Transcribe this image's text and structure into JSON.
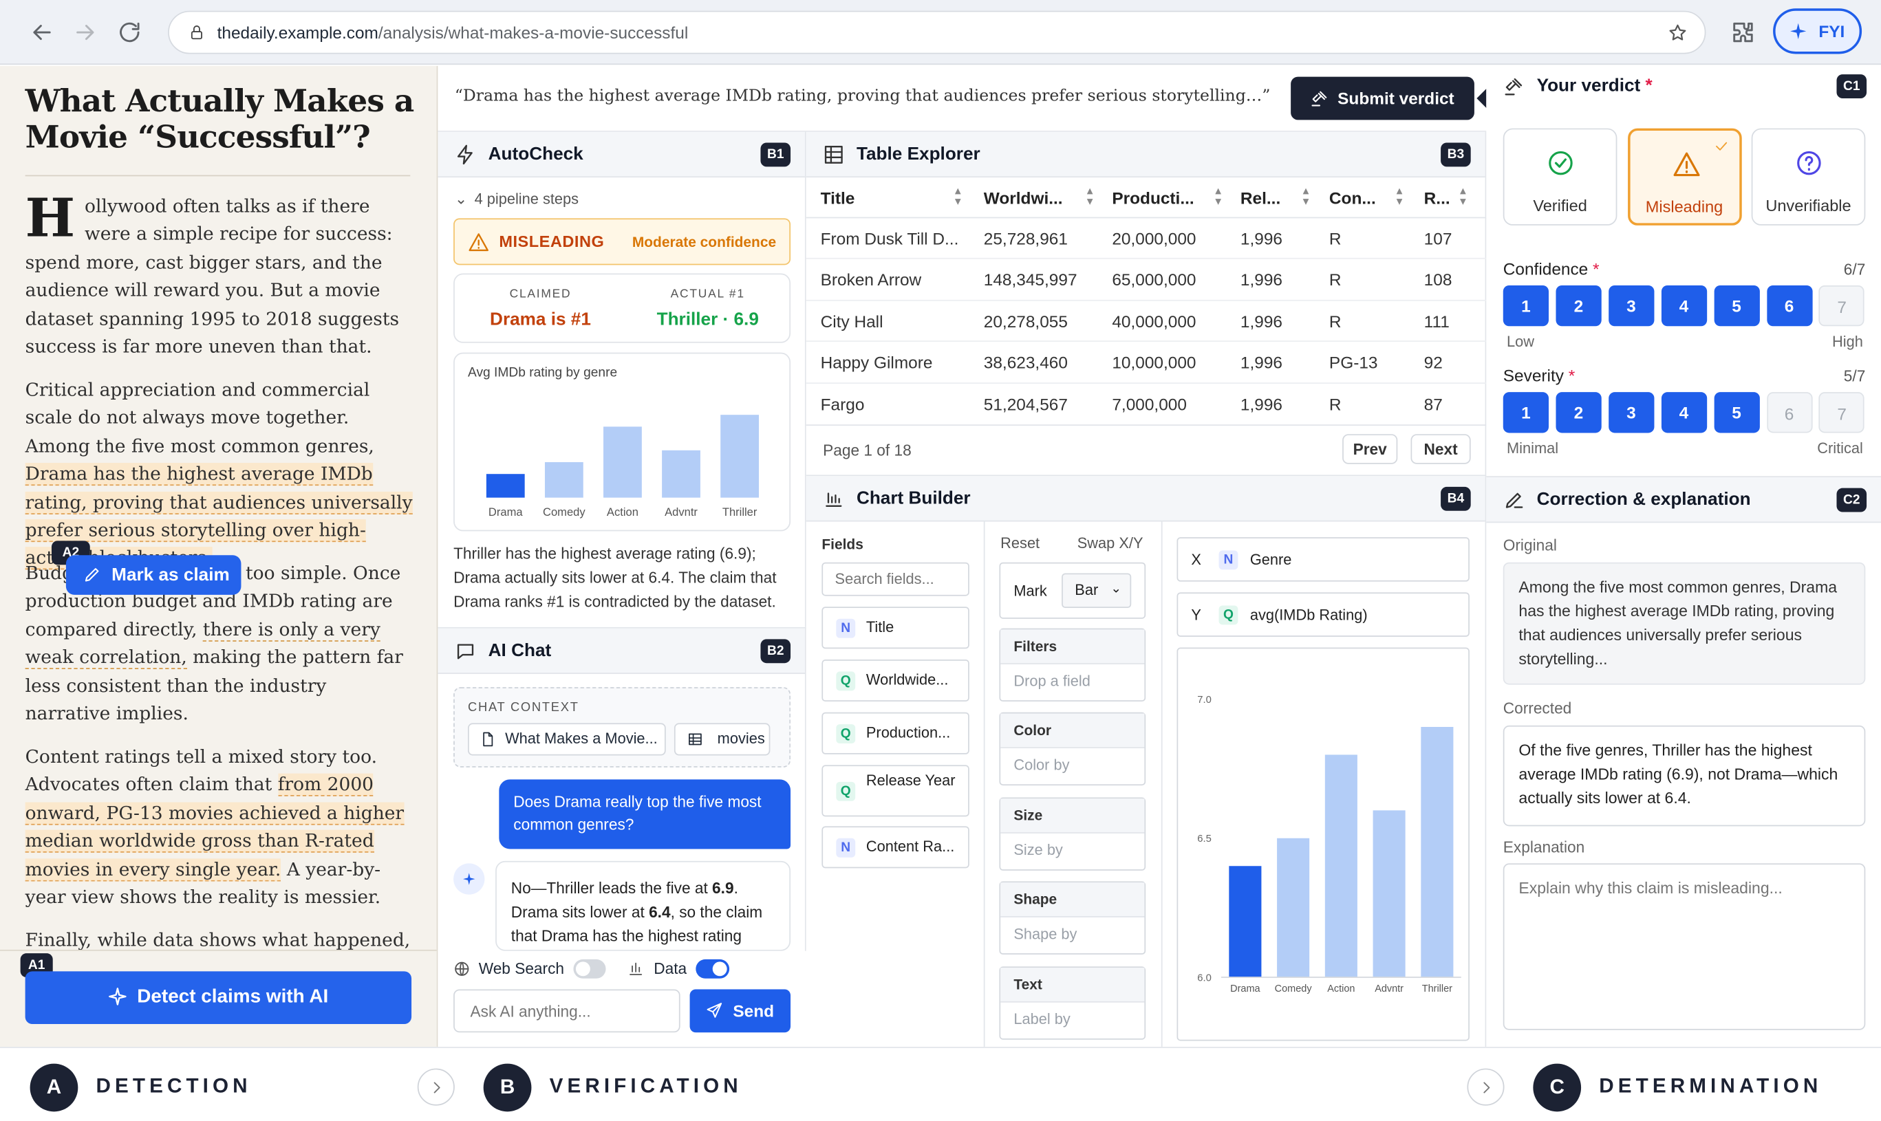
{
  "browser": {
    "url_domain": "thedaily.example.com",
    "url_path": "/analysis/what-makes-a-movie-successful",
    "fyi_label": "FYI"
  },
  "article": {
    "title": "What Actually Makes a Movie “Successful”?",
    "p1_drop": "H",
    "p1": "ollywood often talks as if there were a simple recipe for success: spend more, cast bigger stars, and the audience will reward you. But a movie dataset spanning 1995 to 2018 suggests success is far more uneven than that.",
    "p2_a": "Critical appreciation and commercial scale do not always move together. Among the five most common genres, ",
    "p2_claim": "Drama has the highest average IMDb rating, proving that audiences universally prefer serious storytelling over high-action blockbusters.",
    "p3_a": "Budg",
    "p3_b": " be too simple. Once production budget and IMDb rating are compared directly, ",
    "p3_claim": "there is only a very weak correlation,",
    "p3_c": " making the pattern far less consistent than the industry narrative implies.",
    "p4_a": "Content ratings tell a mixed story too. Advocates often claim that ",
    "p4_claim": "from 2000 onward, PG-13 movies achieved a higher median worldwide gross than R-rated movies in every single year.",
    "p4_b": " A year-by-year view shows the reality is messier.",
    "p5": "Finally, while data shows what happened, it",
    "mark_claim": "Mark as claim",
    "detect_button": "Detect claims with AI",
    "badge_a1": "A1",
    "badge_a2": "A2"
  },
  "claim_bar": {
    "text": "“Drama has the highest average IMDb rating, proving that audiences prefer serious storytelling…”",
    "submit": "Submit verdict"
  },
  "autocheck": {
    "title": "AutoCheck",
    "badge": "B1",
    "steps": "4 pipeline steps",
    "verdict": "MISLEADING",
    "confidence": "Moderate confidence",
    "claimed_label": "CLAIMED",
    "claimed_value": "Drama is #1",
    "actual_label": "ACTUAL #1",
    "actual_value": "Thriller · 6.9",
    "mini_chart_title": "Avg IMDb rating by genre",
    "summary": "Thriller has the highest average rating (6.9); Drama actually sits lower at 6.4. The claim that Drama ranks #1 is contradicted by the dataset."
  },
  "chart_data": [
    {
      "type": "bar",
      "title": "Avg IMDb rating by genre",
      "categories": [
        "Drama",
        "Comedy",
        "Action",
        "Advntr",
        "Thriller"
      ],
      "values": [
        6.4,
        6.5,
        6.8,
        6.6,
        6.9
      ],
      "highlight": "Drama",
      "colors": {
        "highlight": "#1f5eea",
        "base": "#b3cdf7"
      }
    },
    {
      "type": "bar",
      "categories": [
        "Drama",
        "Comedy",
        "Action",
        "Advntr",
        "Thriller"
      ],
      "values": [
        6.4,
        6.5,
        6.8,
        6.6,
        6.9
      ],
      "ylim": [
        6.0,
        7.0
      ],
      "yticks": [
        "6.0",
        "6.5",
        "7.0"
      ],
      "highlight": "Drama"
    }
  ],
  "chat": {
    "title": "AI Chat",
    "badge": "B2",
    "context_label": "CHAT CONTEXT",
    "context_article": "What Makes a Movie...",
    "context_table": "movies",
    "user_msg": "Does Drama really top the five most common genres?",
    "ai_a": "No—Thriller leads the five at ",
    "ai_b": "6.9",
    "ai_c": ". Drama sits lower at ",
    "ai_d": "6.4",
    "ai_e": ", so the claim that Drama has the highest rating",
    "web_search": "Web Search",
    "data": "Data",
    "placeholder": "Ask AI anything...",
    "send": "Send"
  },
  "table": {
    "title": "Table Explorer",
    "badge": "B3",
    "columns": [
      "Title",
      "Worldwi...",
      "Producti...",
      "Rel...",
      "Con...",
      "R..."
    ],
    "rows": [
      [
        "From Dusk Till D...",
        "25,728,961",
        "20,000,000",
        "1,996",
        "R",
        "107"
      ],
      [
        "Broken Arrow",
        "148,345,997",
        "65,000,000",
        "1,996",
        "R",
        "108"
      ],
      [
        "City Hall",
        "20,278,055",
        "40,000,000",
        "1,996",
        "R",
        "111"
      ],
      [
        "Happy Gilmore",
        "38,623,460",
        "10,000,000",
        "1,996",
        "PG-13",
        "92"
      ],
      [
        "Fargo",
        "51,204,567",
        "7,000,000",
        "1,996",
        "R",
        "87"
      ]
    ],
    "page": "Page 1 of 18",
    "prev": "Prev",
    "next": "Next"
  },
  "builder": {
    "title": "Chart Builder",
    "badge": "B4",
    "fields_label": "Fields",
    "search_placeholder": "Search fields...",
    "fields": [
      {
        "t": "N",
        "name": "Title"
      },
      {
        "t": "Q",
        "name": "Worldwide..."
      },
      {
        "t": "Q",
        "name": "Production..."
      },
      {
        "t": "Q",
        "name": "Release Year"
      },
      {
        "t": "N",
        "name": "Content Ra..."
      }
    ],
    "reset": "Reset",
    "swap": "Swap X/Y",
    "mark_label": "Mark",
    "mark_value": "Bar",
    "enc": [
      {
        "label": "Filters",
        "ph": "Drop a field"
      },
      {
        "label": "Color",
        "ph": "Color by"
      },
      {
        "label": "Size",
        "ph": "Size by"
      },
      {
        "label": "Shape",
        "ph": "Shape by"
      },
      {
        "label": "Text",
        "ph": "Label by"
      }
    ],
    "x_axis": "X",
    "x_type": "N",
    "x_field": "Genre",
    "y_axis": "Y",
    "y_type": "Q",
    "y_field": "avg(IMDb Rating)"
  },
  "verdict": {
    "title": "Your verdict",
    "badge": "C1",
    "options": [
      "Verified",
      "Misleading",
      "Unverifiable"
    ],
    "selected": "Misleading",
    "confidence_label": "Confidence",
    "confidence_value": "6/7",
    "confidence": 6,
    "low": "Low",
    "high": "High",
    "severity_label": "Severity",
    "severity_value": "5/7",
    "severity": 5,
    "minimal": "Minimal",
    "critical": "Critical"
  },
  "correction": {
    "title": "Correction & explanation",
    "badge": "C2",
    "original_label": "Original",
    "original": "Among the five most common genres, Drama has the highest average IMDb rating, proving that audiences universally prefer serious storytelling...",
    "corrected_label": "Corrected",
    "corrected": "Of the five genres, Thriller has the highest average IMDb rating (6.9), not Drama—which actually sits lower at 6.4.",
    "explanation_label": "Explanation",
    "explanation_placeholder": "Explain why this claim is misleading..."
  },
  "steps": [
    {
      "letter": "A",
      "label": "DETECTION"
    },
    {
      "letter": "B",
      "label": "VERIFICATION"
    },
    {
      "letter": "C",
      "label": "DETERMINATION"
    }
  ],
  "colors": {
    "accent": "#1f5eea",
    "dark": "#1c2233",
    "misleading": "#d97706",
    "verified": "#16a34a",
    "highlight": "#fbe8cc"
  }
}
